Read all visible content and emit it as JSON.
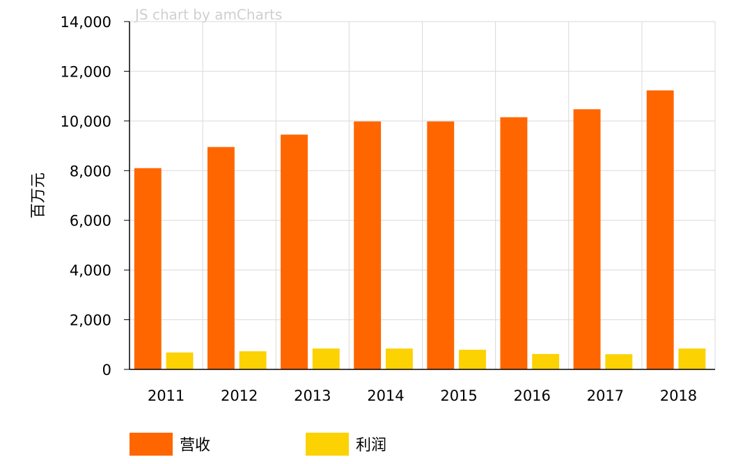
{
  "credit": "JS chart by amCharts",
  "chart_data": {
    "type": "bar",
    "title": "",
    "xlabel": "",
    "ylabel": "百万元",
    "categories": [
      "2011",
      "2012",
      "2013",
      "2014",
      "2015",
      "2016",
      "2017",
      "2018"
    ],
    "ylim": [
      0,
      14000
    ],
    "yticks": [
      0,
      2000,
      4000,
      6000,
      8000,
      10000,
      12000,
      14000
    ],
    "ytick_labels": [
      "0",
      "2,000",
      "4,000",
      "6,000",
      "8,000",
      "10,000",
      "12,000",
      "14,000"
    ],
    "grid": true,
    "legend_position": "bottom-left",
    "series": [
      {
        "name": "营收",
        "color": "#ff6600",
        "values": [
          8100,
          8950,
          9450,
          9980,
          9980,
          10150,
          10470,
          11230
        ]
      },
      {
        "name": "利润",
        "color": "#fcd202",
        "values": [
          680,
          730,
          840,
          840,
          790,
          620,
          610,
          840
        ]
      }
    ]
  }
}
